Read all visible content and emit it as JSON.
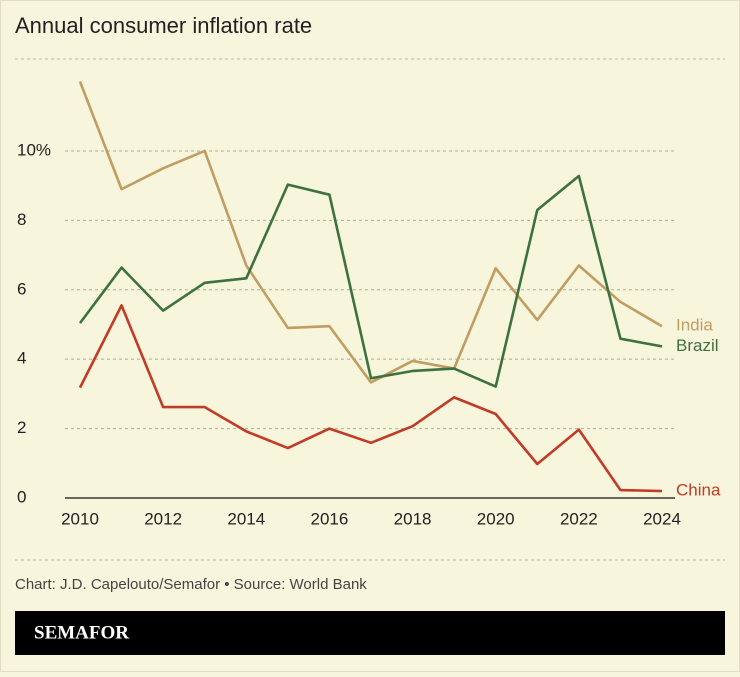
{
  "chart_data": {
    "type": "line",
    "title": "Annual consumer inflation rate",
    "source": "Chart: J.D. Capelouto/Semafor • Source: World Bank",
    "brand": "SEMAFOR",
    "x": [
      2010,
      2011,
      2012,
      2013,
      2014,
      2015,
      2016,
      2017,
      2018,
      2019,
      2020,
      2021,
      2022,
      2023,
      2024
    ],
    "xlim": [
      2010,
      2024
    ],
    "xticks": [
      2010,
      2012,
      2014,
      2016,
      2018,
      2020,
      2022,
      2024
    ],
    "ylim": [
      0,
      12.65
    ],
    "yticks": [
      0,
      2,
      4,
      6,
      8,
      {
        "value": 10,
        "label": "10%"
      }
    ],
    "grid": true,
    "series": [
      {
        "name": "India",
        "color": "#c29d62",
        "values": [
          12.0,
          8.9,
          9.5,
          10.0,
          6.7,
          4.9,
          4.95,
          3.33,
          3.95,
          3.73,
          6.62,
          5.13,
          6.7,
          5.65,
          4.95
        ]
      },
      {
        "name": "Brazil",
        "color": "#3e7140",
        "values": [
          5.04,
          6.64,
          5.4,
          6.2,
          6.33,
          9.03,
          8.74,
          3.45,
          3.66,
          3.73,
          3.21,
          8.3,
          9.28,
          4.59,
          4.37
        ]
      },
      {
        "name": "China",
        "color": "#c23b27",
        "values": [
          3.18,
          5.55,
          2.62,
          2.62,
          1.92,
          1.44,
          2.0,
          1.59,
          2.07,
          2.9,
          2.42,
          0.98,
          1.97,
          0.23,
          0.2
        ]
      }
    ]
  }
}
